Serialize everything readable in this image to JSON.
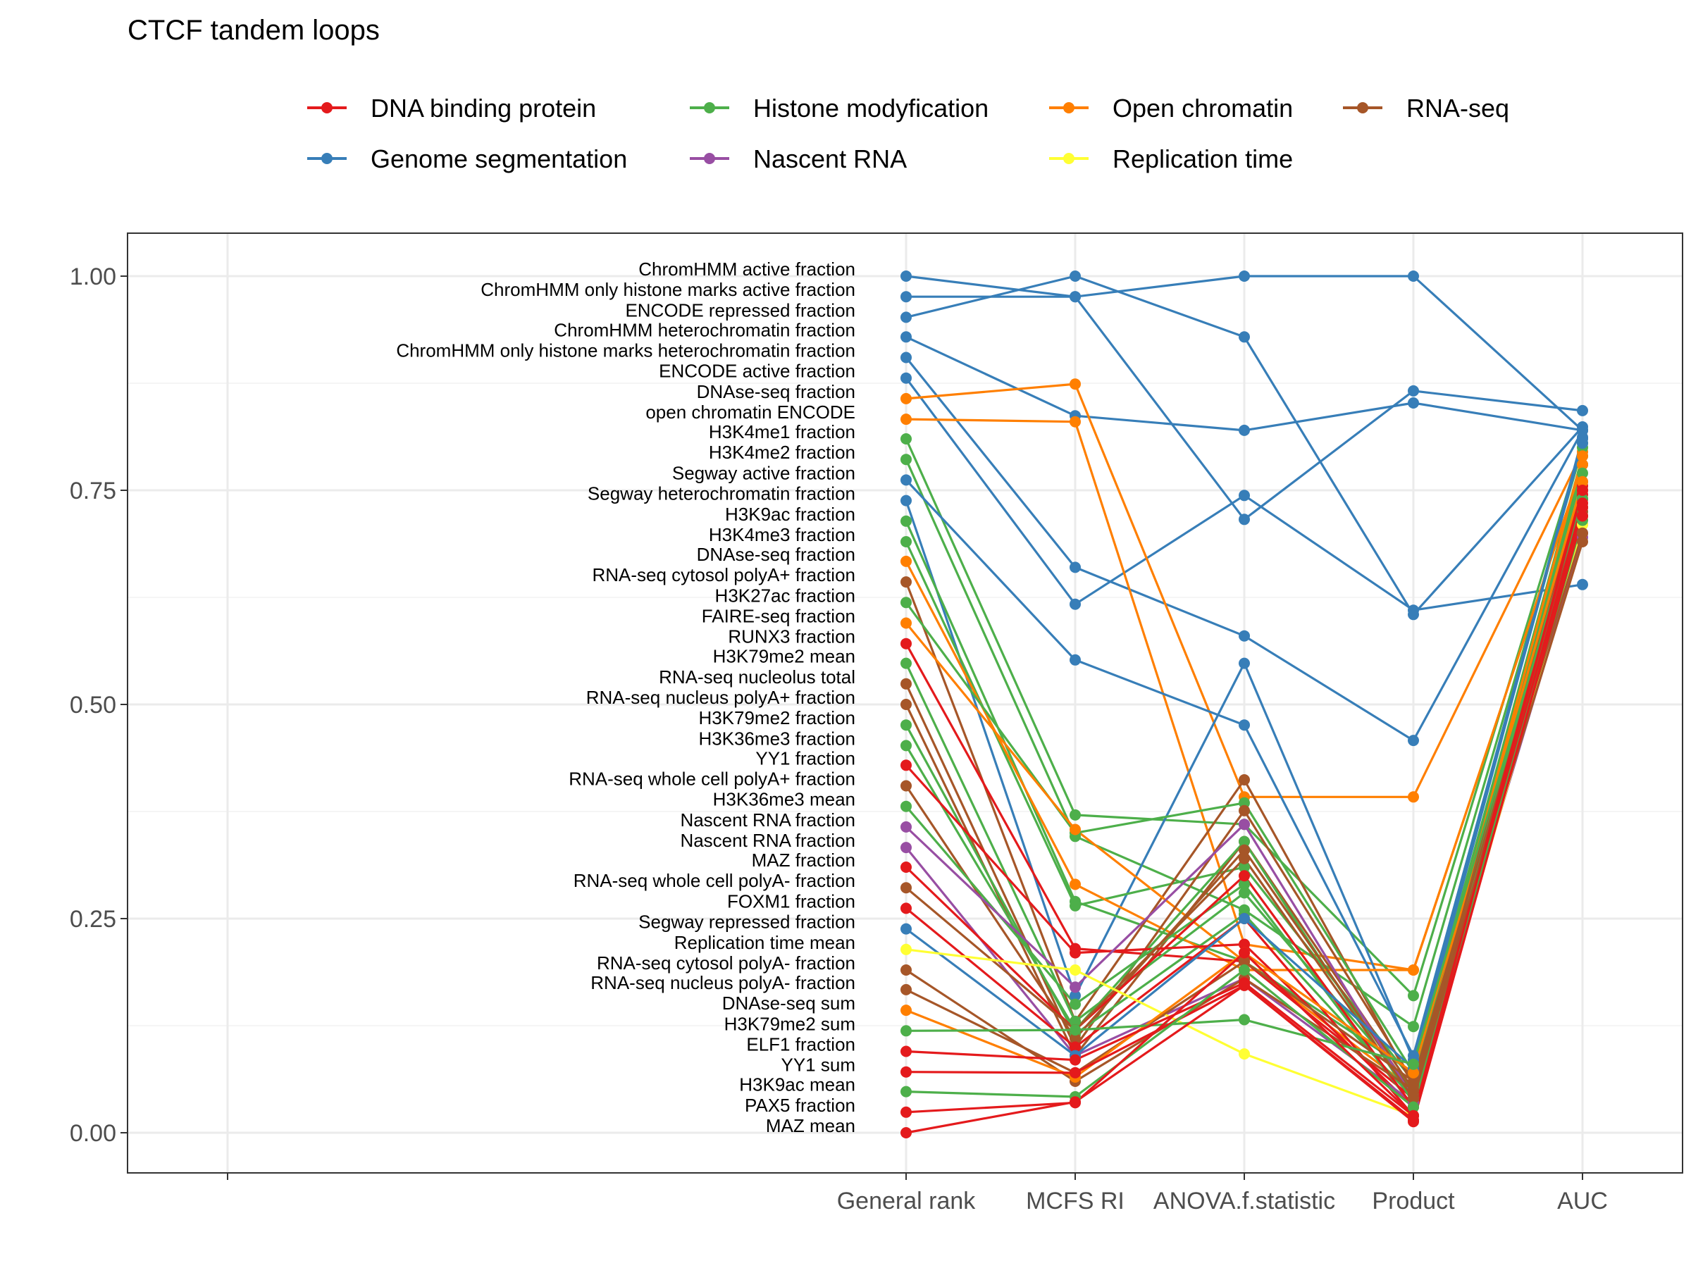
{
  "chart_data": {
    "type": "line",
    "title": "CTCF tandem loops",
    "xlabel": "",
    "ylabel": "",
    "ylim": [
      -0.04,
      1.05
    ],
    "y_ticks": [
      "0.00",
      "0.25",
      "0.50",
      "0.75",
      "1.00"
    ],
    "y_tick_values": [
      0,
      0.25,
      0.5,
      0.75,
      1.0
    ],
    "categories": [
      "General rank",
      "MCFS RI",
      "ANOVA.f.statistic",
      "Product",
      "AUC"
    ],
    "legend": [
      {
        "name": "DNA binding protein",
        "color": "#E41A1C"
      },
      {
        "name": "Genome segmentation",
        "color": "#377EB8"
      },
      {
        "name": "Histone modyfication",
        "color": "#4DAF4A"
      },
      {
        "name": "Nascent RNA",
        "color": "#984EA3"
      },
      {
        "name": "Open chromatin",
        "color": "#FF7F00"
      },
      {
        "name": "Replication time",
        "color": "#FFFF33"
      },
      {
        "name": "RNA-seq",
        "color": "#A65628"
      }
    ],
    "series": [
      {
        "name": "ChromHMM active fraction",
        "group": "Genome segmentation",
        "values": [
          1.0,
          0.976,
          1.0,
          1.0,
          0.82
        ]
      },
      {
        "name": "ChromHMM only histone marks active fraction",
        "group": "Genome segmentation",
        "values": [
          0.976,
          0.976,
          0.716,
          0.866,
          0.843
        ]
      },
      {
        "name": "ENCODE repressed fraction",
        "group": "Genome segmentation",
        "values": [
          0.952,
          1.0,
          0.929,
          0.605,
          0.824
        ]
      },
      {
        "name": "ChromHMM heterochromatin fraction",
        "group": "Genome segmentation",
        "values": [
          0.929,
          0.837,
          0.82,
          0.852,
          0.82
        ]
      },
      {
        "name": "ChromHMM only histone marks heterochromatin fraction",
        "group": "Genome segmentation",
        "values": [
          0.905,
          0.66,
          0.58,
          0.458,
          0.82
        ]
      },
      {
        "name": "ENCODE active fraction",
        "group": "Genome segmentation",
        "values": [
          0.881,
          0.617,
          0.744,
          0.61,
          0.64
        ]
      },
      {
        "name": "DNAse-seq fraction",
        "group": "Open chromatin",
        "values": [
          0.857,
          0.874,
          0.392,
          0.392,
          0.795
        ]
      },
      {
        "name": "open chromatin ENCODE",
        "group": "Open chromatin",
        "values": [
          0.833,
          0.83,
          0.22,
          0.19,
          0.78
        ]
      },
      {
        "name": "H3K4me1 fraction",
        "group": "Histone modyfication",
        "values": [
          0.81,
          0.371,
          0.36,
          0.16,
          0.805
        ]
      },
      {
        "name": "H3K4me2 fraction",
        "group": "Histone modyfication",
        "values": [
          0.786,
          0.346,
          0.26,
          0.124,
          0.8
        ]
      },
      {
        "name": "Segway active fraction",
        "group": "Genome segmentation",
        "values": [
          0.762,
          0.552,
          0.476,
          0.09,
          0.81
        ]
      },
      {
        "name": "Segway heterochromatin fraction",
        "group": "Genome segmentation",
        "values": [
          0.738,
          0.16,
          0.548,
          0.085,
          0.805
        ]
      },
      {
        "name": "H3K9ac fraction",
        "group": "Histone modyfication",
        "values": [
          0.714,
          0.27,
          0.2,
          0.07,
          0.79
        ]
      },
      {
        "name": "H3K4me3 fraction",
        "group": "Histone modyfication",
        "values": [
          0.69,
          0.265,
          0.31,
          0.06,
          0.78
        ]
      },
      {
        "name": "DNAse-seq fraction",
        "group": "Open chromatin",
        "values": [
          0.667,
          0.29,
          0.19,
          0.19,
          0.78
        ]
      },
      {
        "name": "RNA-seq cytosol polyA+ fraction",
        "group": "RNA-seq",
        "values": [
          0.643,
          0.13,
          0.412,
          0.055,
          0.76
        ]
      },
      {
        "name": "H3K27ac fraction",
        "group": "Histone modyfication",
        "values": [
          0.619,
          0.35,
          0.385,
          0.07,
          0.77
        ]
      },
      {
        "name": "FAIRE-seq fraction",
        "group": "Open chromatin",
        "values": [
          0.595,
          0.354,
          0.2,
          0.05,
          0.79
        ]
      },
      {
        "name": "RUNX3 fraction",
        "group": "DNA binding protein",
        "values": [
          0.571,
          0.215,
          0.2,
          0.04,
          0.74
        ]
      },
      {
        "name": "H3K79me2 mean",
        "group": "Histone modyfication",
        "values": [
          0.548,
          0.13,
          0.28,
          0.05,
          0.75
        ]
      },
      {
        "name": "RNA-seq nucleolus total",
        "group": "RNA-seq",
        "values": [
          0.524,
          0.1,
          0.376,
          0.06,
          0.73
        ]
      },
      {
        "name": "RNA-seq nucleus polyA+ fraction",
        "group": "RNA-seq",
        "values": [
          0.5,
          0.09,
          0.34,
          0.05,
          0.72
        ]
      },
      {
        "name": "H3K79me2 fraction",
        "group": "Histone modyfication",
        "values": [
          0.476,
          0.115,
          0.255,
          0.04,
          0.74
        ]
      },
      {
        "name": "H3K36me3 fraction",
        "group": "Histone modyfication",
        "values": [
          0.452,
          0.12,
          0.34,
          0.035,
          0.73
        ]
      },
      {
        "name": "YY1 fraction",
        "group": "DNA binding protein",
        "values": [
          0.429,
          0.21,
          0.22,
          0.03,
          0.745
        ]
      },
      {
        "name": "RNA-seq whole cell polyA+ fraction",
        "group": "RNA-seq",
        "values": [
          0.405,
          0.11,
          0.33,
          0.045,
          0.725
        ]
      },
      {
        "name": "H3K36me3 mean",
        "group": "Histone modyfication",
        "values": [
          0.381,
          0.15,
          0.29,
          0.03,
          0.72
        ]
      },
      {
        "name": "Nascent RNA fraction",
        "group": "Nascent RNA",
        "values": [
          0.357,
          0.17,
          0.36,
          0.04,
          0.7
        ]
      },
      {
        "name": "Nascent RNA fraction",
        "group": "Nascent RNA",
        "values": [
          0.333,
          0.09,
          0.18,
          0.035,
          0.695
        ]
      },
      {
        "name": "MAZ fraction",
        "group": "DNA binding protein",
        "values": [
          0.31,
          0.12,
          0.3,
          0.03,
          0.75
        ]
      },
      {
        "name": "RNA-seq whole cell polyA- fraction",
        "group": "RNA-seq",
        "values": [
          0.286,
          0.12,
          0.32,
          0.04,
          0.71
        ]
      },
      {
        "name": "FOXM1 fraction",
        "group": "DNA binding protein",
        "values": [
          0.262,
          0.1,
          0.25,
          0.02,
          0.755
        ]
      },
      {
        "name": "Segway repressed fraction",
        "group": "Genome segmentation",
        "values": [
          0.238,
          0.09,
          0.25,
          0.075,
          0.812
        ]
      },
      {
        "name": "Replication time mean",
        "group": "Replication time",
        "values": [
          0.214,
          0.19,
          0.092,
          0.02,
          0.71
        ]
      },
      {
        "name": "RNA-seq cytosol polyA- fraction",
        "group": "RNA-seq",
        "values": [
          0.19,
          0.06,
          0.18,
          0.05,
          0.69
        ]
      },
      {
        "name": "RNA-seq nucleus polyA- fraction",
        "group": "RNA-seq",
        "values": [
          0.167,
          0.07,
          0.2,
          0.06,
          0.7
        ]
      },
      {
        "name": "DNAse-seq sum",
        "group": "Open chromatin",
        "values": [
          0.143,
          0.065,
          0.21,
          0.07,
          0.76
        ]
      },
      {
        "name": "H3K79me2 sum",
        "group": "Histone modyfication",
        "values": [
          0.119,
          0.12,
          0.132,
          0.08,
          0.74
        ]
      },
      {
        "name": "ELF1 fraction",
        "group": "DNA binding protein",
        "values": [
          0.095,
          0.085,
          0.175,
          0.02,
          0.73
        ]
      },
      {
        "name": "YY1 sum",
        "group": "DNA binding protein",
        "values": [
          0.071,
          0.07,
          0.172,
          0.015,
          0.735
        ]
      },
      {
        "name": "H3K9ac mean",
        "group": "Histone modyfication",
        "values": [
          0.048,
          0.042,
          0.19,
          0.03,
          0.715
        ]
      },
      {
        "name": "PAX5 fraction",
        "group": "DNA binding protein",
        "values": [
          0.024,
          0.035,
          0.21,
          0.02,
          0.75
        ]
      },
      {
        "name": "MAZ mean",
        "group": "DNA binding protein",
        "values": [
          0.0,
          0.036,
          0.172,
          0.013,
          0.72
        ]
      }
    ]
  }
}
